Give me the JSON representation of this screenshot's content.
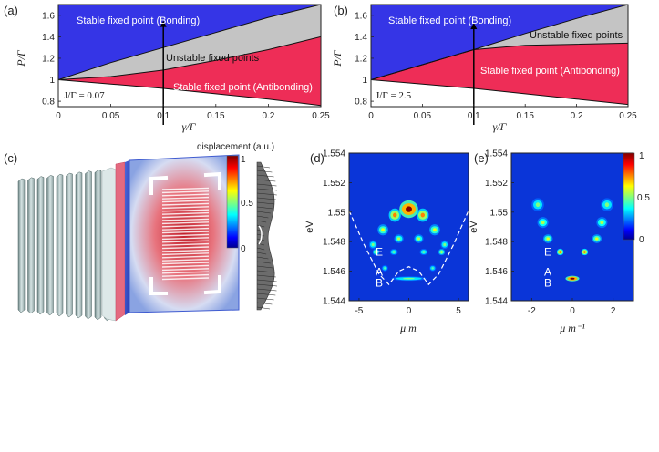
{
  "panel_labels": {
    "a": "(a)",
    "b": "(b)",
    "c": "(c)",
    "d": "(d)",
    "e": "(e)"
  },
  "colors": {
    "bonding": "#3535e6",
    "antibonding": "#ee2d57",
    "unstable": "#c4c4c4"
  },
  "chart_data": [
    {
      "id": "a",
      "type": "area",
      "title": "",
      "xlabel": "γ/Γ",
      "ylabel": "P/Γ",
      "xlim": [
        0,
        0.25
      ],
      "ylim": [
        0.75,
        1.7
      ],
      "xticks": [
        0,
        0.05,
        0.1,
        0.15,
        0.2,
        0.25
      ],
      "xtick_labels": [
        "0",
        "0.05",
        "0.1",
        "0.15",
        "0.2",
        "0.25"
      ],
      "yticks": [
        0.8,
        1,
        1.2,
        1.4,
        1.6
      ],
      "ytick_labels": [
        "0.8",
        "1",
        "1.2",
        "1.4",
        "1.6"
      ],
      "boundaries": {
        "x": [
          0,
          0.05,
          0.1,
          0.15,
          0.2,
          0.25
        ],
        "upper": [
          1.0,
          1.16,
          1.3,
          1.44,
          1.58,
          1.7
        ],
        "middle": [
          1.0,
          1.03,
          1.09,
          1.18,
          1.28,
          1.4
        ],
        "lower": [
          1.0,
          0.96,
          0.92,
          0.87,
          0.82,
          0.76
        ]
      },
      "region_labels": {
        "bonding": "Stable fixed point (Bonding)",
        "unstable": "Unstable fixed points",
        "antibonding": "Stable fixed point (Antibonding)"
      },
      "param_label": "J/Γ = 0.07",
      "arrow": {
        "x": 0.1,
        "y_from": 0.75,
        "y_to": 1.55
      }
    },
    {
      "id": "b",
      "type": "area",
      "title": "",
      "xlabel": "γ/Γ",
      "ylabel": "P/Γ",
      "xlim": [
        0,
        0.25
      ],
      "ylim": [
        0.75,
        1.7
      ],
      "xticks": [
        0,
        0.05,
        0.1,
        0.15,
        0.2,
        0.25
      ],
      "xtick_labels": [
        "0",
        "0.05",
        "0.1",
        "0.15",
        "0.2",
        "0.25"
      ],
      "yticks": [
        0.8,
        1,
        1.2,
        1.4,
        1.6
      ],
      "ytick_labels": [
        "0.8",
        "1",
        "1.2",
        "1.4",
        "1.6"
      ],
      "boundaries": {
        "x": [
          0,
          0.05,
          0.1,
          0.15,
          0.2,
          0.25
        ],
        "upper": [
          1.0,
          1.14,
          1.28,
          1.43,
          1.57,
          1.7
        ],
        "middle": [
          1.0,
          1.14,
          1.28,
          1.32,
          1.33,
          1.34
        ],
        "lower": [
          1.0,
          0.96,
          0.92,
          0.87,
          0.82,
          0.77
        ]
      },
      "region_labels": {
        "bonding": "Stable fixed point (Bonding)",
        "unstable": "Unstable fixed points",
        "antibonding": "Stable fixed point (Antibonding)"
      },
      "param_label": "J/Γ = 2.5",
      "arrow": {
        "x": 0.1,
        "y_from": 0.75,
        "y_to": 1.53
      }
    },
    {
      "id": "d",
      "type": "heatmap",
      "xlabel": "μ m",
      "ylabel": "eV",
      "xlim": [
        -6,
        6
      ],
      "ylim": [
        1.544,
        1.554
      ],
      "xticks": [
        -5,
        0,
        5
      ],
      "xtick_labels": [
        "-5",
        "0",
        "5"
      ],
      "yticks": [
        1.544,
        1.546,
        1.548,
        1.55,
        1.552,
        1.554
      ],
      "ytick_labels": [
        "1.544",
        "1.546",
        "1.548",
        "1.55",
        "1.552",
        "1.554"
      ],
      "state_labels": [
        "E",
        "A",
        "B"
      ],
      "state_energies": [
        1.5473,
        1.5462,
        1.5455
      ],
      "spots": [
        {
          "x": 0,
          "y": 1.5502,
          "w": 1.4,
          "h": 0.0008,
          "v": 1.0
        },
        {
          "x": -1.4,
          "y": 1.5498,
          "w": 0.9,
          "h": 0.0006,
          "v": 0.75
        },
        {
          "x": 1.4,
          "y": 1.5498,
          "w": 0.9,
          "h": 0.0006,
          "v": 0.75
        },
        {
          "x": -2.6,
          "y": 1.5488,
          "w": 0.8,
          "h": 0.0005,
          "v": 0.6
        },
        {
          "x": 2.6,
          "y": 1.5488,
          "w": 0.8,
          "h": 0.0005,
          "v": 0.6
        },
        {
          "x": -3.6,
          "y": 1.5478,
          "w": 0.6,
          "h": 0.0004,
          "v": 0.5
        },
        {
          "x": 3.6,
          "y": 1.5478,
          "w": 0.6,
          "h": 0.0004,
          "v": 0.5
        },
        {
          "x": -1.0,
          "y": 1.5482,
          "w": 0.7,
          "h": 0.0004,
          "v": 0.55
        },
        {
          "x": 1.0,
          "y": 1.5482,
          "w": 0.7,
          "h": 0.0004,
          "v": 0.55
        },
        {
          "x": -3.3,
          "y": 1.5473,
          "w": 0.5,
          "h": 0.0003,
          "v": 0.6
        },
        {
          "x": 3.3,
          "y": 1.5473,
          "w": 0.5,
          "h": 0.0003,
          "v": 0.6
        },
        {
          "x": -1.5,
          "y": 1.5473,
          "w": 0.6,
          "h": 0.0003,
          "v": 0.5
        },
        {
          "x": 1.5,
          "y": 1.5473,
          "w": 0.6,
          "h": 0.0003,
          "v": 0.5
        },
        {
          "x": -2.4,
          "y": 1.5462,
          "w": 0.5,
          "h": 0.0003,
          "v": 0.45
        },
        {
          "x": 2.4,
          "y": 1.5462,
          "w": 0.5,
          "h": 0.0003,
          "v": 0.45
        },
        {
          "x": 0,
          "y": 1.5455,
          "w": 2.6,
          "h": 0.0002,
          "v": 0.5
        }
      ],
      "dispersion_guide": {
        "x": [
          -6,
          -4.5,
          -3,
          -2,
          -1,
          0,
          1,
          2,
          3,
          4.5,
          6
        ],
        "y": [
          1.5501,
          1.5478,
          1.5458,
          1.5451,
          1.546,
          1.5463,
          1.546,
          1.5451,
          1.5458,
          1.5478,
          1.5501
        ]
      }
    },
    {
      "id": "e",
      "type": "heatmap",
      "xlabel": "μ m⁻¹",
      "ylabel": "eV",
      "xlim": [
        -3,
        3
      ],
      "ylim": [
        1.544,
        1.554
      ],
      "xticks": [
        -2,
        0,
        2
      ],
      "xtick_labels": [
        "-2",
        "0",
        "2"
      ],
      "yticks": [
        1.544,
        1.546,
        1.548,
        1.55,
        1.552,
        1.554
      ],
      "ytick_labels": [
        "1.544",
        "1.546",
        "1.548",
        "1.55",
        "1.552",
        "1.554"
      ],
      "state_labels": [
        "E",
        "A",
        "B"
      ],
      "state_energies": [
        1.5473,
        1.5462,
        1.5455
      ],
      "colorbar": {
        "min": 0,
        "max": 1,
        "ticks": [
          0,
          0.5,
          1
        ],
        "tick_labels": [
          "0",
          "0.5",
          "1"
        ]
      },
      "spots": [
        {
          "x": -1.7,
          "y": 1.5505,
          "w": 0.45,
          "h": 0.0006,
          "v": 0.5
        },
        {
          "x": 1.7,
          "y": 1.5505,
          "w": 0.45,
          "h": 0.0006,
          "v": 0.5
        },
        {
          "x": -1.45,
          "y": 1.5493,
          "w": 0.4,
          "h": 0.0005,
          "v": 0.55
        },
        {
          "x": 1.45,
          "y": 1.5493,
          "w": 0.4,
          "h": 0.0005,
          "v": 0.55
        },
        {
          "x": -1.2,
          "y": 1.5482,
          "w": 0.35,
          "h": 0.0004,
          "v": 0.6
        },
        {
          "x": 1.2,
          "y": 1.5482,
          "w": 0.35,
          "h": 0.0004,
          "v": 0.6
        },
        {
          "x": -0.6,
          "y": 1.5473,
          "w": 0.25,
          "h": 0.0003,
          "v": 0.8
        },
        {
          "x": 0.6,
          "y": 1.5473,
          "w": 0.25,
          "h": 0.0003,
          "v": 0.8
        },
        {
          "x": 0,
          "y": 1.5455,
          "w": 0.5,
          "h": 0.00025,
          "v": 1.0
        }
      ]
    },
    {
      "id": "c",
      "type": "heatmap",
      "title": "displacement (a.u.)",
      "colorbar": {
        "min": 0,
        "max": 1,
        "ticks": [
          0,
          0.5,
          1
        ],
        "tick_labels": [
          "0",
          "0.5",
          "1"
        ]
      }
    }
  ]
}
